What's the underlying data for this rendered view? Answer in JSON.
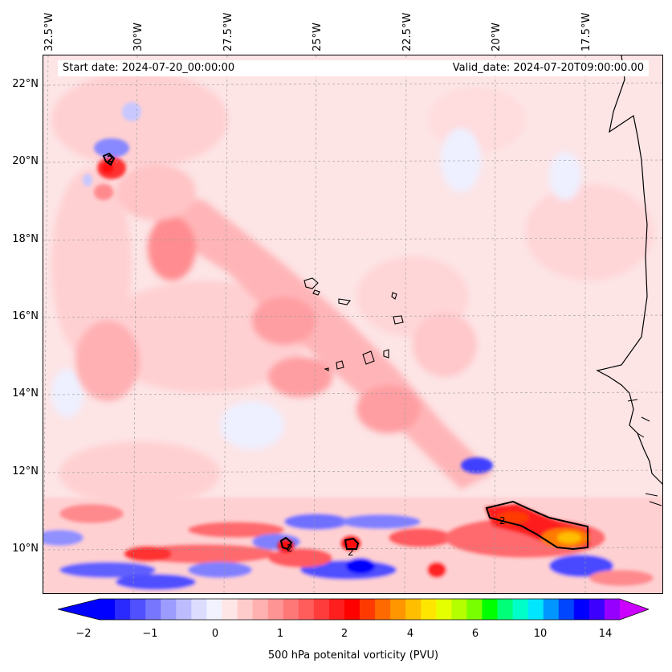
{
  "header": {
    "start_date": "Start date: 2024-07-20_00:00:00",
    "valid_date": "Valid_date: 2024-07-20T09:00:00.00"
  },
  "axes": {
    "lon_labels": [
      "32.5°W",
      "30°W",
      "27.5°W",
      "25°W",
      "22.5°W",
      "20°W",
      "17.5°W"
    ],
    "lat_labels": [
      "22°N",
      "20°N",
      "18°N",
      "16°N",
      "14°N",
      "12°N",
      "10°N"
    ]
  },
  "contour_labels": [
    "2",
    "2",
    "2",
    "2"
  ],
  "colorbar": {
    "ticks": [
      "−2",
      "−1",
      "0",
      "1",
      "2",
      "4",
      "6",
      "10",
      "14"
    ],
    "label": "500 hPa potenital vorticity (PVU)",
    "colors": [
      "#0000ff",
      "#2a2aff",
      "#5050ff",
      "#7676ff",
      "#9c9cff",
      "#bcbcff",
      "#dcdcff",
      "#f2f2ff",
      "#ffe6e6",
      "#ffcccc",
      "#ffb0b0",
      "#ff9494",
      "#ff7878",
      "#ff5c5c",
      "#ff3c3c",
      "#ff1e1e",
      "#ff0000",
      "#ff3a00",
      "#ff6a00",
      "#ff9600",
      "#ffbe00",
      "#ffe600",
      "#e6ff00",
      "#b4ff00",
      "#78ff00",
      "#00ff00",
      "#00ff78",
      "#00ffc8",
      "#00e6ff",
      "#0096ff",
      "#0046ff",
      "#0000ff",
      "#3c00ff",
      "#9600ff"
    ]
  }
}
